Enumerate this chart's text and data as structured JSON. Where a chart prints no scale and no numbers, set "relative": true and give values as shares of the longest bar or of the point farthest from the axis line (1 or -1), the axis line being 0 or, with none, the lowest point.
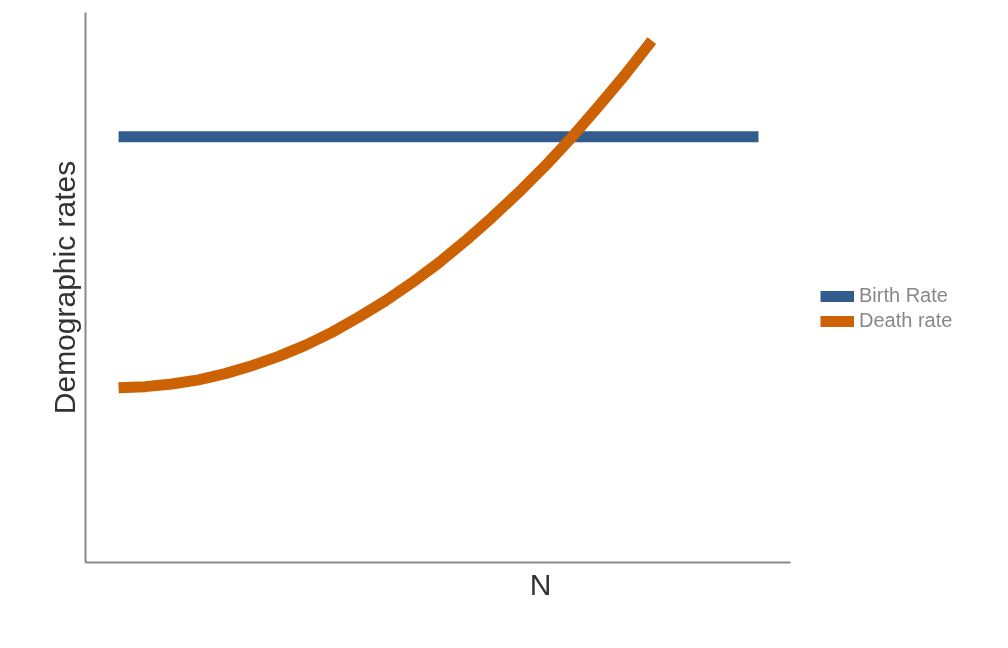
{
  "chart_data": {
    "type": "line",
    "xlabel": "N",
    "ylabel": "Demographic rates",
    "relative": true,
    "legend": "right",
    "marker": "none",
    "line_style": "solid",
    "categories": [
      null,
      null,
      null,
      null,
      null,
      null,
      null,
      null,
      null,
      null,
      null,
      null,
      null,
      null,
      null,
      null,
      null,
      null,
      null,
      null,
      null,
      null,
      null,
      null,
      null
    ],
    "series": [
      {
        "name": "Birth Rate",
        "color": "#335c8e",
        "values": [
          0.816,
          0.816,
          0.816,
          0.816,
          0.816,
          0.816,
          0.816,
          0.816,
          0.816,
          0.816,
          0.816,
          0.816,
          0.816,
          0.816,
          0.816,
          0.816,
          0.816,
          0.816,
          0.816,
          0.816,
          0.816,
          0.816,
          0.816,
          0.816,
          0.816
        ]
      },
      {
        "name": "Death rate",
        "color": "#cc6204",
        "values": [
          0.335,
          0.337,
          0.342,
          0.35,
          0.362,
          0.377,
          0.395,
          0.416,
          0.441,
          0.47,
          0.501,
          0.536,
          0.574,
          0.616,
          0.661,
          0.709,
          0.76,
          0.815,
          0.874,
          0.935,
          1.0,
          null,
          null,
          null,
          null
        ]
      }
    ]
  }
}
